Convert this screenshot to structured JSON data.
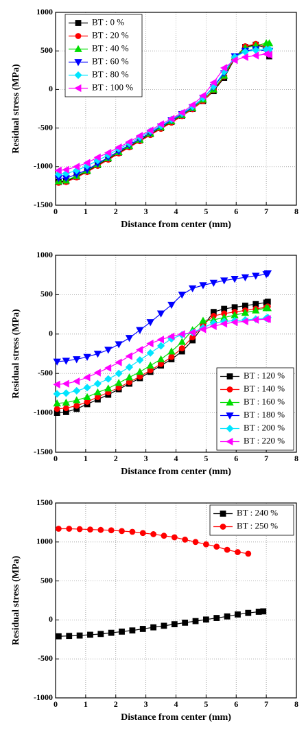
{
  "chart_data": [
    {
      "type": "line",
      "xlabel": "Distance from center (mm)",
      "ylabel": "Residual stress (MPa)",
      "xlim": [
        0,
        8
      ],
      "xticks": [
        0,
        1,
        2,
        3,
        4,
        5,
        6,
        7,
        8
      ],
      "ylim": [
        -1500,
        1000
      ],
      "yticks": [
        -1500,
        -1000,
        -500,
        0,
        500,
        1000
      ],
      "grid": true,
      "legend": "upper left",
      "x": [
        0.1,
        0.35,
        0.7,
        1.05,
        1.4,
        1.75,
        2.1,
        2.45,
        2.8,
        3.15,
        3.5,
        3.85,
        4.2,
        4.55,
        4.9,
        5.25,
        5.6,
        5.95,
        6.3,
        6.65,
        7.0,
        7.1
      ],
      "series": [
        {
          "name": "BT : 0 %",
          "color": "#000000",
          "marker": "square",
          "values": [
            -1200,
            -1190,
            -1130,
            -1060,
            -980,
            -900,
            -820,
            -740,
            -660,
            -580,
            -500,
            -420,
            -340,
            -250,
            -150,
            -20,
            150,
            400,
            550,
            580,
            540,
            430
          ]
        },
        {
          "name": "BT : 20 %",
          "color": "#ff0000",
          "marker": "circle",
          "values": [
            -1210,
            -1200,
            -1140,
            -1070,
            -990,
            -910,
            -830,
            -750,
            -670,
            -590,
            -510,
            -430,
            -345,
            -255,
            -150,
            -10,
            170,
            410,
            560,
            590,
            560,
            480
          ]
        },
        {
          "name": "BT : 40 %",
          "color": "#00dd00",
          "marker": "triangle-up",
          "values": [
            -1190,
            -1180,
            -1120,
            -1050,
            -970,
            -890,
            -810,
            -730,
            -650,
            -570,
            -490,
            -410,
            -330,
            -240,
            -130,
            0,
            180,
            420,
            540,
            570,
            600,
            600
          ]
        },
        {
          "name": "BT : 60 %",
          "color": "#0000ff",
          "marker": "triangle-down",
          "values": [
            -1150,
            -1150,
            -1100,
            -1040,
            -960,
            -880,
            -800,
            -720,
            -640,
            -560,
            -480,
            -400,
            -320,
            -230,
            -110,
            30,
            210,
            430,
            500,
            520,
            500,
            500
          ]
        },
        {
          "name": "BT : 80 %",
          "color": "#00e5ff",
          "marker": "diamond",
          "values": [
            -1100,
            -1090,
            -1050,
            -990,
            -920,
            -850,
            -770,
            -700,
            -620,
            -540,
            -470,
            -390,
            -310,
            -220,
            -110,
            40,
            230,
            420,
            490,
            510,
            520,
            520
          ]
        },
        {
          "name": "BT : 100 %",
          "color": "#ff00ff",
          "marker": "triangle-left",
          "values": [
            -1050,
            -1040,
            -1000,
            -950,
            -880,
            -820,
            -750,
            -680,
            -600,
            -530,
            -450,
            -380,
            -300,
            -200,
            -80,
            90,
            280,
            380,
            420,
            440,
            460,
            450
          ]
        }
      ]
    },
    {
      "type": "line",
      "xlabel": "Distance from center (mm)",
      "ylabel": "Residual stress (MPa)",
      "xlim": [
        0,
        8
      ],
      "xticks": [
        0,
        1,
        2,
        3,
        4,
        5,
        6,
        7,
        8
      ],
      "ylim": [
        -1500,
        1000
      ],
      "yticks": [
        -1500,
        -1000,
        -500,
        0,
        500,
        1000
      ],
      "grid": true,
      "legend": "lower right",
      "x": [
        0.05,
        0.35,
        0.7,
        1.05,
        1.4,
        1.75,
        2.1,
        2.45,
        2.8,
        3.15,
        3.5,
        3.85,
        4.2,
        4.55,
        4.9,
        5.25,
        5.6,
        5.95,
        6.3,
        6.65,
        7.0,
        7.05
      ],
      "series": [
        {
          "name": "BT : 120 %",
          "color": "#000000",
          "marker": "square",
          "values": [
            -1000,
            -990,
            -950,
            -890,
            -830,
            -770,
            -700,
            -630,
            -560,
            -480,
            -400,
            -320,
            -220,
            -80,
            100,
            280,
            320,
            340,
            360,
            380,
            400,
            410
          ]
        },
        {
          "name": "BT : 140 %",
          "color": "#ff0000",
          "marker": "circle",
          "values": [
            -950,
            -940,
            -910,
            -860,
            -800,
            -740,
            -680,
            -610,
            -540,
            -460,
            -380,
            -290,
            -180,
            -40,
            120,
            230,
            260,
            280,
            300,
            320,
            340,
            350
          ]
        },
        {
          "name": "BT : 160 %",
          "color": "#00dd00",
          "marker": "triangle-up",
          "values": [
            -880,
            -870,
            -840,
            -800,
            -740,
            -690,
            -620,
            -550,
            -480,
            -400,
            -320,
            -220,
            -100,
            50,
            170,
            180,
            210,
            240,
            270,
            300,
            330,
            330
          ]
        },
        {
          "name": "BT : 180 %",
          "color": "#0000ff",
          "marker": "triangle-down",
          "values": [
            -350,
            -340,
            -320,
            -290,
            -250,
            -200,
            -130,
            -50,
            50,
            150,
            260,
            370,
            500,
            580,
            620,
            650,
            680,
            700,
            720,
            740,
            760,
            770
          ]
        },
        {
          "name": "BT : 200 %",
          "color": "#00e5ff",
          "marker": "diamond",
          "values": [
            -760,
            -750,
            -720,
            -680,
            -630,
            -570,
            -500,
            -420,
            -330,
            -240,
            -150,
            -60,
            -10,
            20,
            80,
            140,
            160,
            170,
            180,
            190,
            200,
            210
          ]
        },
        {
          "name": "BT : 220 %",
          "color": "#ff00ff",
          "marker": "triangle-left",
          "values": [
            -640,
            -630,
            -600,
            -550,
            -490,
            -430,
            -360,
            -280,
            -200,
            -120,
            -70,
            -30,
            0,
            20,
            60,
            100,
            130,
            150,
            160,
            180,
            190,
            190
          ]
        }
      ]
    },
    {
      "type": "line",
      "xlabel": "Distance from center (mm)",
      "ylabel": "Residual stress (MPa)",
      "xlim": [
        0,
        8
      ],
      "xticks": [
        0,
        1,
        2,
        3,
        4,
        5,
        6,
        7,
        8
      ],
      "ylim": [
        -1000,
        1500
      ],
      "yticks": [
        -1000,
        -500,
        0,
        500,
        1000,
        1500
      ],
      "grid": true,
      "legend": "upper right",
      "x": [
        0.1,
        0.45,
        0.8,
        1.15,
        1.5,
        1.85,
        2.2,
        2.55,
        2.9,
        3.25,
        3.6,
        3.95,
        4.3,
        4.65,
        5.0,
        5.35,
        5.7,
        6.05,
        6.4,
        6.75,
        6.9
      ],
      "series": [
        {
          "name": "BT : 240 %",
          "color": "#000000",
          "marker": "square",
          "values": [
            -210,
            -205,
            -200,
            -190,
            -180,
            -165,
            -150,
            -135,
            -115,
            -95,
            -75,
            -55,
            -35,
            -15,
            5,
            25,
            45,
            70,
            90,
            105,
            110
          ]
        },
        {
          "name": "BT : 250 %",
          "color": "#ff0000",
          "marker": "circle",
          "values": [
            1170,
            1170,
            1165,
            1160,
            1155,
            1150,
            1140,
            1130,
            1115,
            1100,
            1080,
            1060,
            1030,
            1000,
            970,
            940,
            900,
            870,
            850,
            null,
            null
          ]
        }
      ]
    }
  ]
}
